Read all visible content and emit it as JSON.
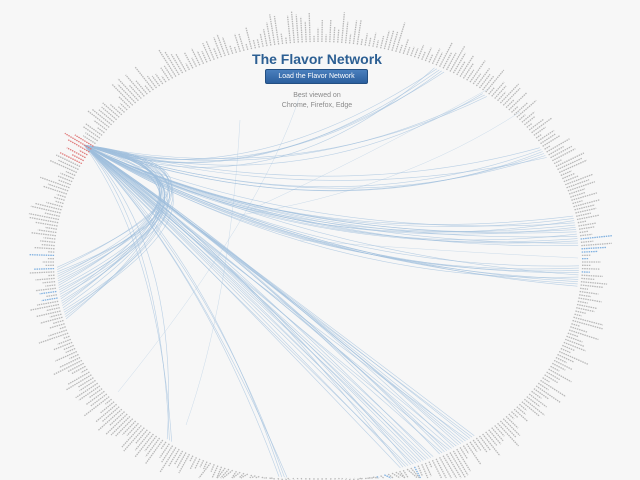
{
  "page": {
    "title": "The Flavor Network",
    "load_button_label": "Load the Flavor Network",
    "note_line_1": "Best viewed on",
    "note_line_2": "Chrome, Firefox, Edge"
  },
  "colors": {
    "background": "#f7f7f7",
    "title": "#2c5f93",
    "button": "#2b5f9e",
    "edge": "#9fbfdd",
    "node_label": "#b8b8b8",
    "highlight_label": "#e07a7a",
    "highlight_node": "#7fb0e0"
  }
}
